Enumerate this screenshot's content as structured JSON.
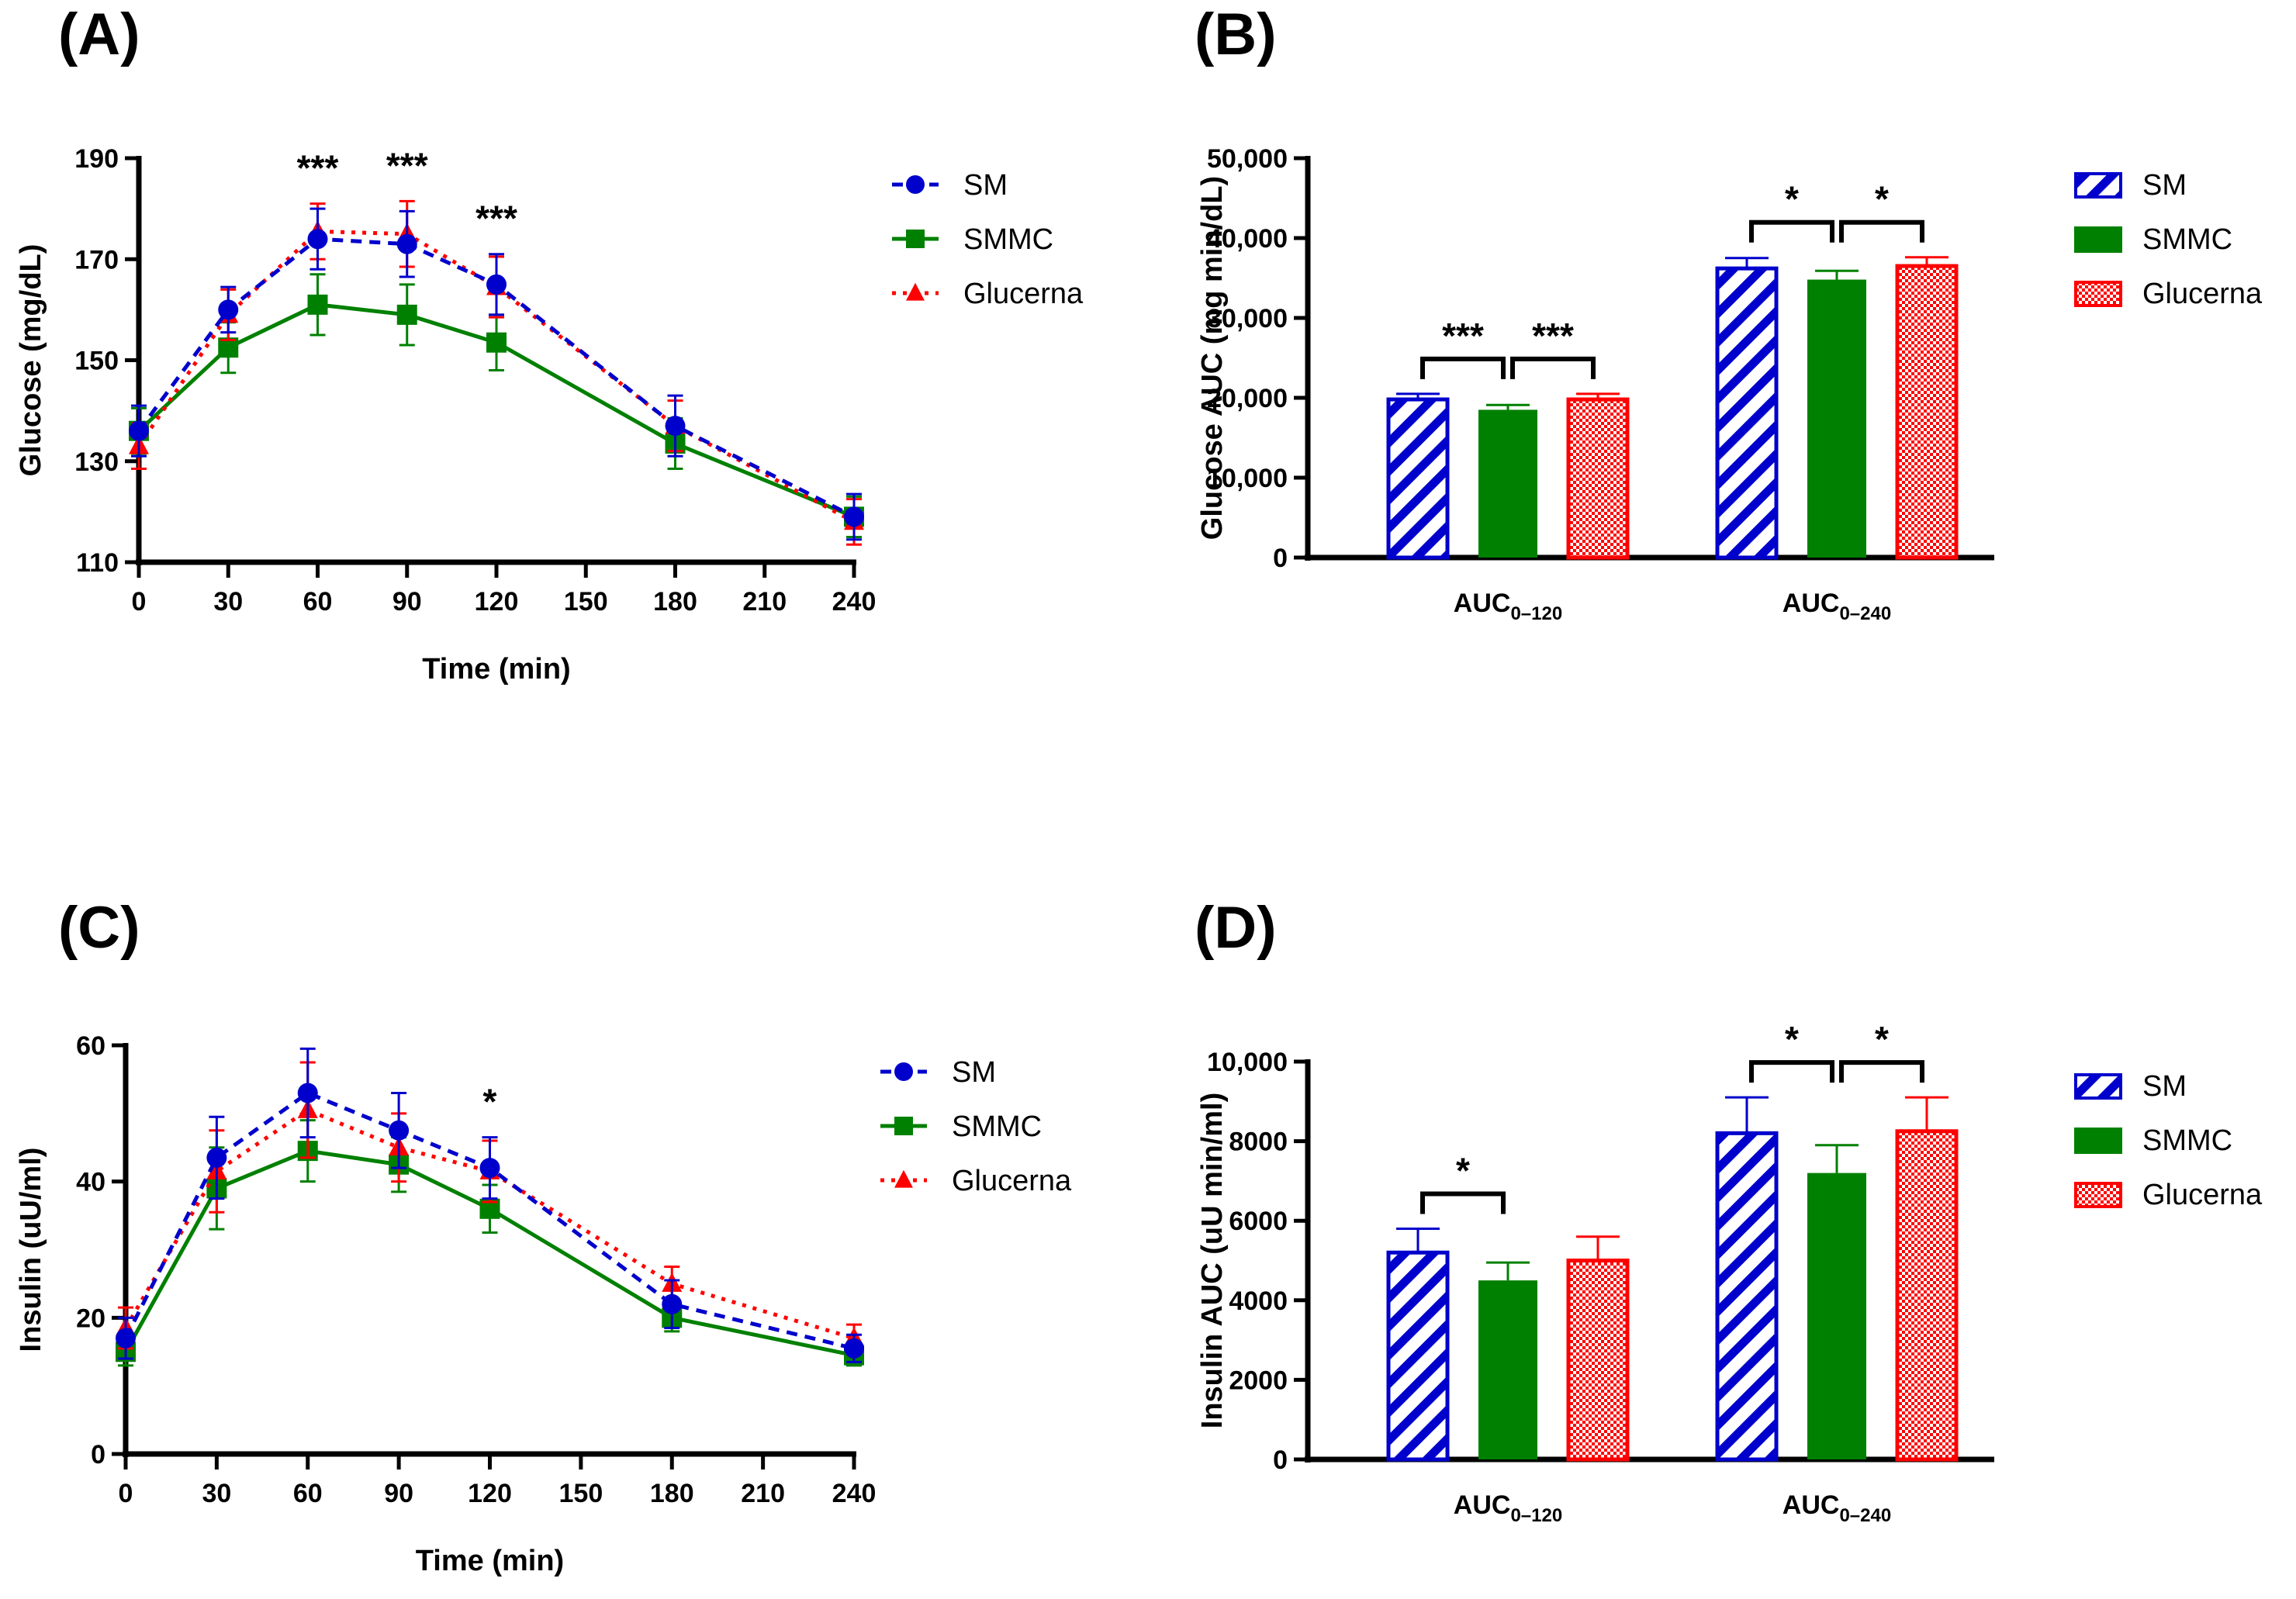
{
  "colors": {
    "SM": "#0000CC",
    "SMMC": "#008000",
    "Glucerna": "#FF0000"
  },
  "chart_data": [
    {
      "panel": "(A)",
      "type": "line",
      "xlabel": "Time (min)",
      "ylabel": "Glucose (mg/dL)",
      "xlim": [
        0,
        240
      ],
      "ylim": [
        110,
        190
      ],
      "xticks": [
        0,
        30,
        60,
        90,
        120,
        150,
        180,
        210,
        240
      ],
      "yticks": [
        110,
        130,
        150,
        170,
        190
      ],
      "x": [
        0,
        30,
        60,
        90,
        120,
        180,
        240
      ],
      "legend": "top-right",
      "series": [
        {
          "name": "SM",
          "values": [
            136,
            160,
            174,
            173,
            165,
            137,
            119
          ],
          "errors": [
            5,
            4.5,
            6,
            6.5,
            6,
            6,
            4.5
          ]
        },
        {
          "name": "SMMC",
          "values": [
            136,
            152.5,
            161,
            159,
            153.5,
            133.5,
            119
          ],
          "errors": [
            4.5,
            5,
            6,
            6,
            5.5,
            5,
            4
          ]
        },
        {
          "name": "Glucerna",
          "values": [
            133,
            159,
            175.5,
            175,
            164.5,
            137,
            118
          ],
          "errors": [
            4.5,
            5,
            5.5,
            6.5,
            6,
            5,
            4.5
          ]
        }
      ],
      "annotations": [
        {
          "x": 60,
          "text": "***"
        },
        {
          "x": 90,
          "text": "***"
        },
        {
          "x": 120,
          "text": "***"
        }
      ]
    },
    {
      "panel": "(B)",
      "type": "bar",
      "ylabel": "Glucose AUC (mg min/dL)",
      "ylim": [
        0,
        50000
      ],
      "yticks": [
        "0",
        "10,000",
        "20,000",
        "30,000",
        "40,000",
        "50,000"
      ],
      "categories": [
        {
          "main": "AUC",
          "sub": "0–120"
        },
        {
          "main": "AUC",
          "sub": "0–240"
        }
      ],
      "legend": "top-right",
      "series": [
        {
          "name": "SM",
          "values": [
            19800,
            36200
          ],
          "errors": [
            700,
            1300
          ]
        },
        {
          "name": "SMMC",
          "values": [
            18500,
            34800
          ],
          "errors": [
            600,
            1100
          ]
        },
        {
          "name": "Glucerna",
          "values": [
            19800,
            36500
          ],
          "errors": [
            700,
            1100
          ]
        }
      ],
      "brackets": [
        {
          "group": 0,
          "from": 0,
          "to": 1,
          "text": "***"
        },
        {
          "group": 0,
          "from": 1,
          "to": 2,
          "text": "***"
        },
        {
          "group": 1,
          "from": 0,
          "to": 1,
          "text": "*"
        },
        {
          "group": 1,
          "from": 1,
          "to": 2,
          "text": "*"
        }
      ]
    },
    {
      "panel": "(C)",
      "type": "line",
      "xlabel": "Time (min)",
      "ylabel": "Insulin (uU/ml)",
      "xlim": [
        0,
        240
      ],
      "ylim": [
        0,
        60
      ],
      "xticks": [
        0,
        30,
        60,
        90,
        120,
        150,
        180,
        210,
        240
      ],
      "yticks": [
        0,
        20,
        40,
        60
      ],
      "x": [
        0,
        30,
        60,
        90,
        120,
        180,
        240
      ],
      "legend": "top-right",
      "series": [
        {
          "name": "SM",
          "values": [
            17,
            43.5,
            53,
            47.5,
            42,
            22,
            15.5
          ],
          "errors": [
            3,
            6,
            6.5,
            5.5,
            4.5,
            3.5,
            2
          ]
        },
        {
          "name": "SMMC",
          "values": [
            15,
            39,
            44.5,
            42.5,
            36,
            20,
            14.5
          ],
          "errors": [
            2,
            6,
            4.5,
            4,
            3.5,
            2,
            1.5
          ]
        },
        {
          "name": "Glucerna",
          "values": [
            18.5,
            41.5,
            50.5,
            45,
            41.5,
            25,
            17
          ],
          "errors": [
            3,
            6,
            7,
            5,
            4.5,
            2.5,
            2
          ]
        }
      ],
      "annotations": [
        {
          "x": 120,
          "text": "*"
        }
      ]
    },
    {
      "panel": "(D)",
      "type": "bar",
      "ylabel": "Insulin AUC (uU min/ml)",
      "ylim": [
        0,
        10000
      ],
      "yticks": [
        "0",
        "2000",
        "4000",
        "6000",
        "8000",
        "10,000"
      ],
      "categories": [
        {
          "main": "AUC",
          "sub": "0–120"
        },
        {
          "main": "AUC",
          "sub": "0–240"
        }
      ],
      "legend": "top-right",
      "series": [
        {
          "name": "SM",
          "values": [
            5200,
            8200
          ],
          "errors": [
            600,
            900
          ]
        },
        {
          "name": "SMMC",
          "values": [
            4500,
            7200
          ],
          "errors": [
            450,
            700
          ]
        },
        {
          "name": "Glucerna",
          "values": [
            5000,
            8250
          ],
          "errors": [
            600,
            850
          ]
        }
      ],
      "brackets": [
        {
          "group": 0,
          "from": 0,
          "to": 1,
          "text": "*"
        },
        {
          "group": 1,
          "from": 0,
          "to": 1,
          "text": "*"
        },
        {
          "group": 1,
          "from": 1,
          "to": 2,
          "text": "*"
        }
      ]
    }
  ]
}
